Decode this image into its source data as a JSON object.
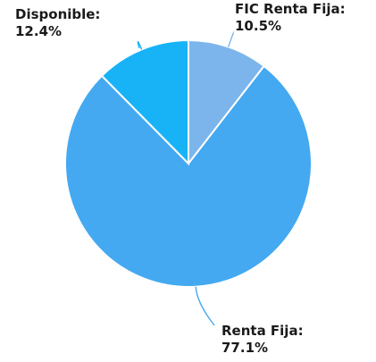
{
  "chart_data": {
    "type": "pie",
    "title": "",
    "slices": [
      {
        "label": "FIC Renta Fija:",
        "value": 10.5,
        "value_text": "10.5%",
        "color": "#7cb5ec"
      },
      {
        "label": "Renta Fija:",
        "value": 77.1,
        "value_text": "77.1%",
        "color": "#44a9f0"
      },
      {
        "label": "Disponible:",
        "value": 12.4,
        "value_text": "12.4%",
        "color": "#18b3f7"
      }
    ],
    "start_angle": "12 o'clock",
    "direction": "clockwise",
    "legend": "none",
    "data_labels": "outside with leader lines"
  }
}
